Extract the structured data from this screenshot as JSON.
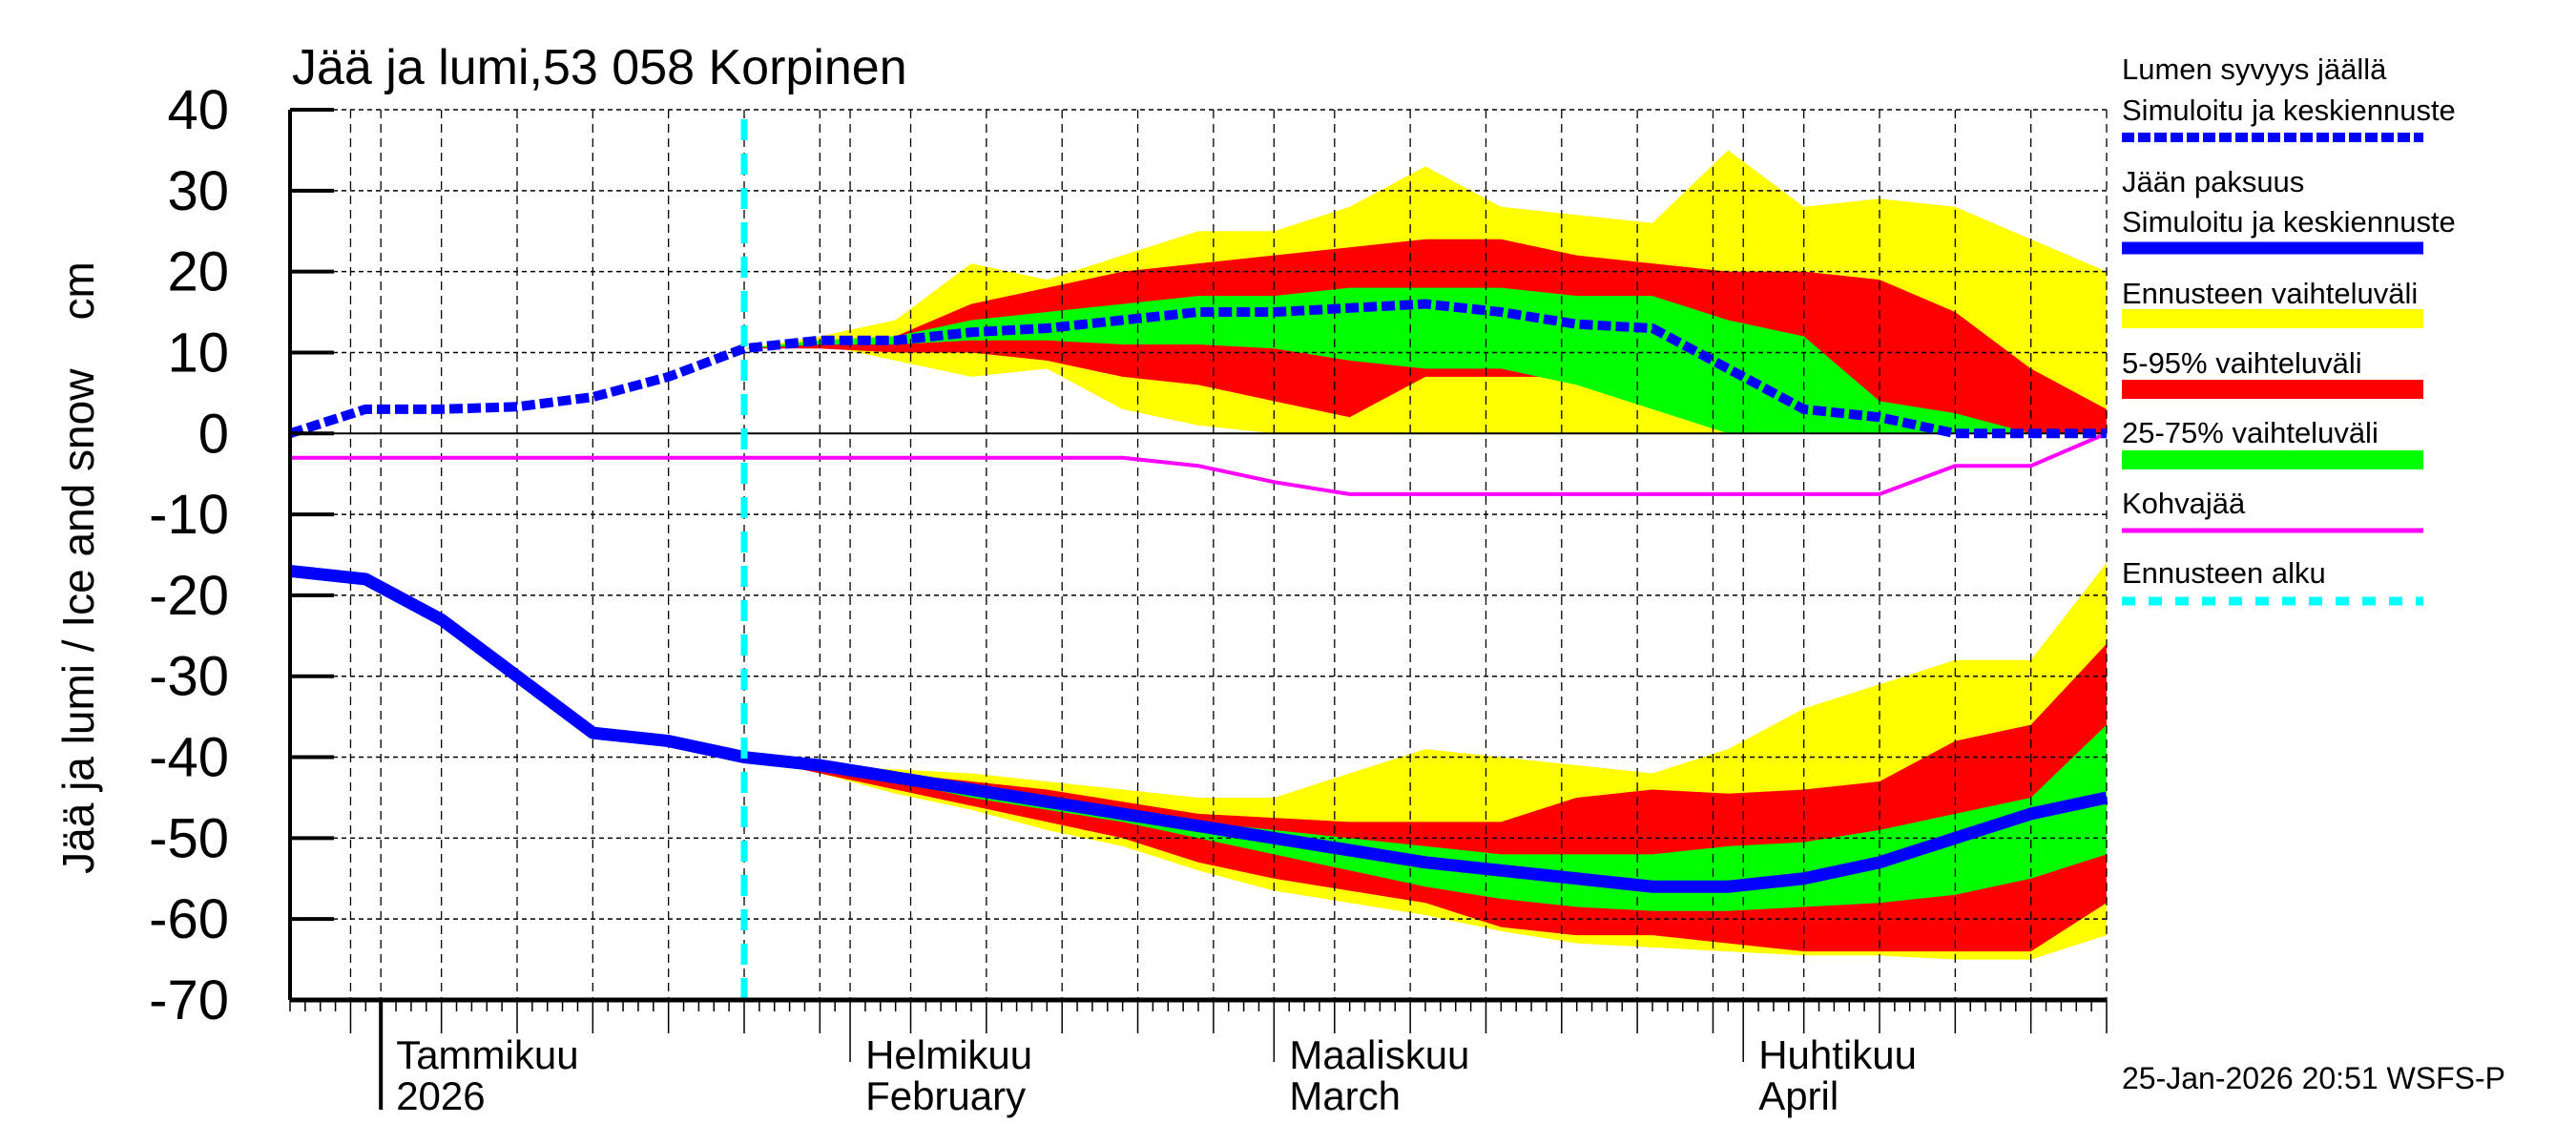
{
  "chart_data": {
    "type": "area",
    "title": "Jää ja lumi,53 058 Korpinen",
    "ylabel": "Jää ja lumi / Ice and snow    cm",
    "ylim": [
      -70,
      40
    ],
    "yticks": [
      "40",
      "30",
      "20",
      "10",
      "0",
      "-10",
      "-20",
      "-30",
      "-40",
      "-50",
      "-60",
      "-70"
    ],
    "ytick_values": [
      40,
      30,
      20,
      10,
      0,
      -10,
      -20,
      -30,
      -40,
      -50,
      -60,
      -70
    ],
    "xlim": [
      "2025-12-26",
      "2026-04-25"
    ],
    "grid": true,
    "legend_placement": "right",
    "month_labels": [
      {
        "date": "2026-01-01",
        "line1": "Tammikuu",
        "line2": "2026"
      },
      {
        "date": "2026-02-01",
        "line1": "Helmikuu",
        "line2": "February"
      },
      {
        "date": "2026-03-01",
        "line1": "Maaliskuu",
        "line2": "March"
      },
      {
        "date": "2026-04-01",
        "line1": "Huhtikuu",
        "line2": "April"
      }
    ],
    "forecast_start": "2026-01-25",
    "colors": {
      "snow": "#0000ff",
      "ice": "#0000ff",
      "range_full": "#ffff00",
      "range_5_95": "#ff0000",
      "range_25_75": "#00ff00",
      "kohvajaa": "#ff00ff",
      "forecast_start": "#00ffff"
    },
    "observed_dates": [
      "2025-12-26",
      "2025-12-31",
      "2026-01-05",
      "2026-01-10",
      "2026-01-15",
      "2026-01-20",
      "2026-01-25"
    ],
    "forecast_dates": [
      "2026-01-25",
      "2026-01-30",
      "2026-02-04",
      "2026-02-09",
      "2026-02-14",
      "2026-02-19",
      "2026-02-24",
      "2026-03-01",
      "2026-03-06",
      "2026-03-11",
      "2026-03-16",
      "2026-03-21",
      "2026-03-26",
      "2026-03-31",
      "2026-04-05",
      "2026-04-10",
      "2026-04-15",
      "2026-04-20",
      "2026-04-25"
    ],
    "all_dates": [
      "2025-12-26",
      "2025-12-31",
      "2026-01-05",
      "2026-01-10",
      "2026-01-15",
      "2026-01-20",
      "2026-01-25",
      "2026-01-30",
      "2026-02-04",
      "2026-02-09",
      "2026-02-14",
      "2026-02-19",
      "2026-02-24",
      "2026-03-01",
      "2026-03-06",
      "2026-03-11",
      "2026-03-16",
      "2026-03-21",
      "2026-03-26",
      "2026-03-31",
      "2026-04-05",
      "2026-04-10",
      "2026-04-15",
      "2026-04-20",
      "2026-04-25"
    ],
    "snow": {
      "observed": [
        0,
        3,
        3,
        3.3,
        4.5,
        7,
        10.5
      ],
      "median": [
        10.5,
        11.5,
        11.5,
        12.5,
        13,
        14,
        15,
        15,
        15.5,
        16,
        15,
        13.5,
        13,
        8,
        3,
        2,
        0,
        0,
        0
      ],
      "full_max": [
        10.5,
        12,
        14,
        21,
        19,
        22,
        25,
        25,
        28,
        33,
        28,
        27,
        26,
        35,
        28,
        29,
        28,
        24,
        20
      ],
      "full_min": [
        10.5,
        11,
        9,
        7,
        8,
        3,
        1,
        0,
        0,
        0,
        0,
        0,
        0,
        0,
        0,
        0,
        0,
        0,
        0
      ],
      "p95": [
        10.5,
        11.5,
        12,
        16,
        18,
        20,
        21,
        22,
        23,
        24,
        24,
        22,
        21,
        20,
        20,
        19,
        15,
        8,
        3
      ],
      "p5": [
        10.5,
        10.5,
        10,
        10,
        9,
        7,
        6,
        4,
        2,
        7,
        7,
        7,
        5,
        0,
        0,
        0,
        0,
        0,
        0
      ],
      "p75": [
        10.5,
        11.5,
        12,
        14,
        15,
        16,
        17,
        17,
        18,
        18,
        18,
        17,
        17,
        14,
        12,
        4,
        2.5,
        0,
        0
      ],
      "p25": [
        10.5,
        11,
        11,
        11.5,
        11.5,
        11,
        11,
        10.5,
        9,
        8,
        8,
        6,
        3,
        0,
        0,
        0,
        0,
        0,
        0
      ]
    },
    "ice": {
      "observed": [
        -17,
        -18,
        -23,
        -30,
        -37,
        -38,
        -40
      ],
      "median": [
        -40,
        -41,
        -42.5,
        -44,
        -45.5,
        -47,
        -48.5,
        -50,
        -51.5,
        -53,
        -54,
        -55,
        -56,
        -56,
        -55,
        -53,
        -50,
        -47,
        -45
      ],
      "full_max": [
        -40,
        -41,
        -41.5,
        -42,
        -43,
        -44,
        -45,
        -45,
        -42,
        -39,
        -40,
        -41,
        -42,
        -39,
        -34,
        -31,
        -28,
        -28,
        -16
      ],
      "full_min": [
        -40,
        -42,
        -44.5,
        -46.5,
        -49,
        -51,
        -54,
        -56.5,
        -58,
        -59.5,
        -61.5,
        -63,
        -63.5,
        -64,
        -64.5,
        -64.5,
        -65,
        -65,
        -62
      ],
      "p95": [
        -40,
        -41,
        -42,
        -43,
        -44,
        -45.5,
        -47,
        -47.5,
        -48,
        -48,
        -48,
        -45,
        -44,
        -44.5,
        -44,
        -43,
        -38,
        -36,
        -26
      ],
      "p5": [
        -40,
        -42,
        -44,
        -46,
        -48,
        -50,
        -53,
        -55,
        -56.5,
        -58,
        -61,
        -62,
        -62,
        -63,
        -64,
        -64,
        -64,
        -64,
        -58
      ],
      "p75": [
        -40,
        -41,
        -42.3,
        -43.5,
        -45,
        -46.5,
        -48,
        -49,
        -50,
        -51,
        -52,
        -52,
        -52,
        -51,
        -50.5,
        -49,
        -47,
        -45,
        -36
      ],
      "p25": [
        -40,
        -41.5,
        -43,
        -45,
        -46.5,
        -48,
        -50,
        -52,
        -54,
        -56,
        -57.5,
        -58.5,
        -59,
        -59,
        -58.5,
        -58,
        -57,
        -55,
        -52
      ]
    },
    "kohvajaa": [
      -3,
      -3,
      -3,
      -3,
      -3,
      -3,
      -3,
      -3,
      -3,
      -3,
      -3,
      -3,
      -4,
      -6,
      -7.5,
      -7.5,
      -7.5,
      -7.5,
      -7.5,
      -7.5,
      -7.5,
      -7.5,
      -4,
      -4,
      0
    ]
  },
  "legend": [
    {
      "line1": "Lumen syvyys jäällä",
      "line2": "Simuloitu ja keskiennuste",
      "style": "dashed",
      "color": "#0000ff"
    },
    {
      "line1": "Jään paksuus",
      "line2": "Simuloitu ja keskiennuste",
      "style": "solid-thick",
      "color": "#0000ff"
    },
    {
      "line1": "Ennusteen vaihteluväli",
      "style": "bar",
      "color": "#ffff00"
    },
    {
      "line1": "5-95% vaihteluväli",
      "style": "bar",
      "color": "#ff0000"
    },
    {
      "line1": "25-75% vaihteluväli",
      "style": "bar",
      "color": "#00ff00"
    },
    {
      "line1": "Kohvajää",
      "style": "thin",
      "color": "#ff00ff"
    },
    {
      "line1": "Ennusteen alku",
      "style": "dashed-cyan",
      "color": "#00ffff"
    }
  ],
  "footer": "25-Jan-2026 20:51 WSFS-P"
}
